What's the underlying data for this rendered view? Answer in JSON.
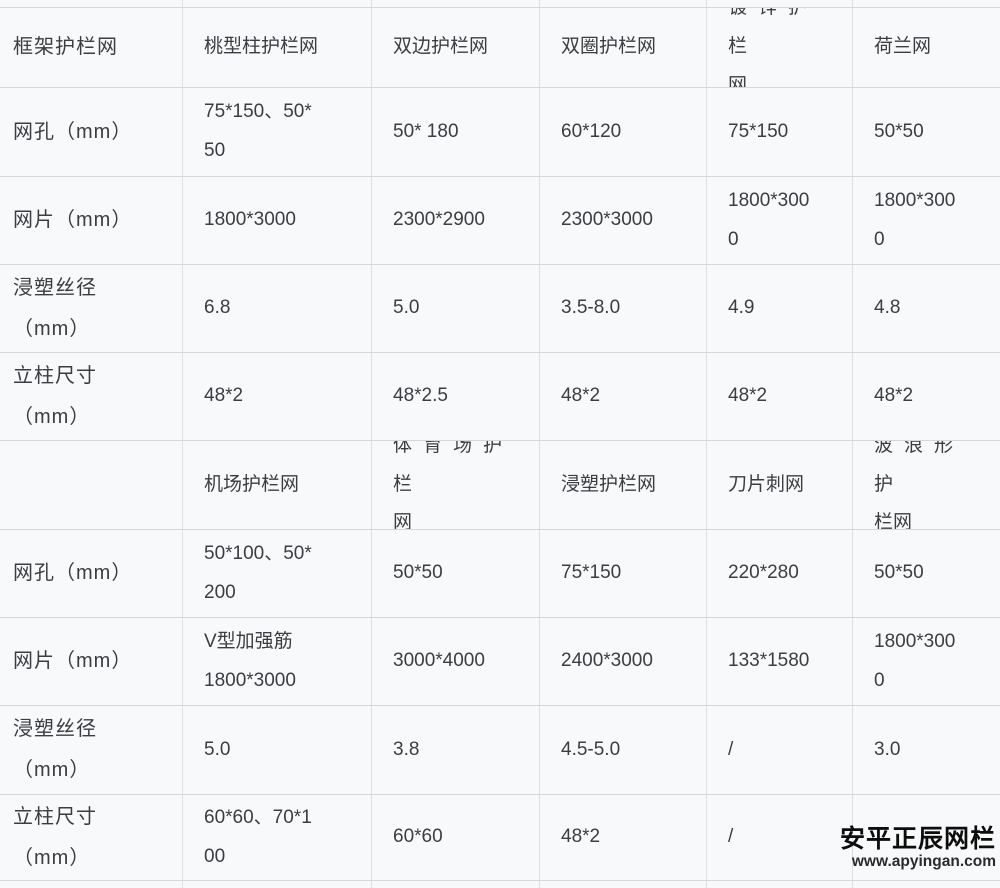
{
  "colors": {
    "cell_background": "#f8f9fa",
    "vertical_border": "#dde0e3",
    "horizontal_border": "#d3d8db",
    "text": "#3a3d42",
    "watermark_text": "#0d0d0d"
  },
  "watermark": {
    "brand": "安平正辰网栏",
    "url": "www.apyingan.com"
  },
  "table": {
    "rows": [
      [
        "",
        "",
        "",
        "",
        "",
        ""
      ],
      [
        "框架护栏网",
        "桃型柱护栏网",
        "双边护栏网",
        "双圈护栏网",
        "镀锌护栏\n网",
        "荷兰网"
      ],
      [
        "网孔（mm）",
        "75*150、50*\n50",
        "50* 180",
        "60*120",
        "75*150",
        "50*50"
      ],
      [
        "网片（mm）",
        "1800*3000",
        "2300*2900",
        "2300*3000",
        "1800*300\n0",
        "1800*300\n0"
      ],
      [
        "浸塑丝径\n（mm）",
        "6.8",
        "5.0",
        "3.5-8.0",
        "4.9",
        "4.8"
      ],
      [
        "立柱尺寸\n（mm）",
        "48*2",
        "48*2.5",
        "48*2",
        "48*2",
        "48*2"
      ],
      [
        "",
        "机场护栏网",
        "体育场护栏\n网",
        "浸塑护栏网",
        "刀片刺网",
        "波浪形护\n栏网"
      ],
      [
        "网孔（mm）",
        "50*100、50*\n200",
        "50*50",
        "75*150",
        "220*280",
        "50*50"
      ],
      [
        "网片（mm）",
        "V型加强筋\n1800*3000",
        "3000*4000",
        "2400*3000",
        "133*1580",
        "1800*300\n0"
      ],
      [
        "浸塑丝径\n（mm）",
        "5.0",
        "3.8",
        "4.5-5.0",
        "/",
        "3.0"
      ],
      [
        "立柱尺寸\n（mm）",
        "60*60、70*1\n00",
        "60*60",
        "48*2",
        "/",
        ""
      ],
      [
        "",
        "",
        "",
        "",
        "",
        ""
      ]
    ]
  }
}
